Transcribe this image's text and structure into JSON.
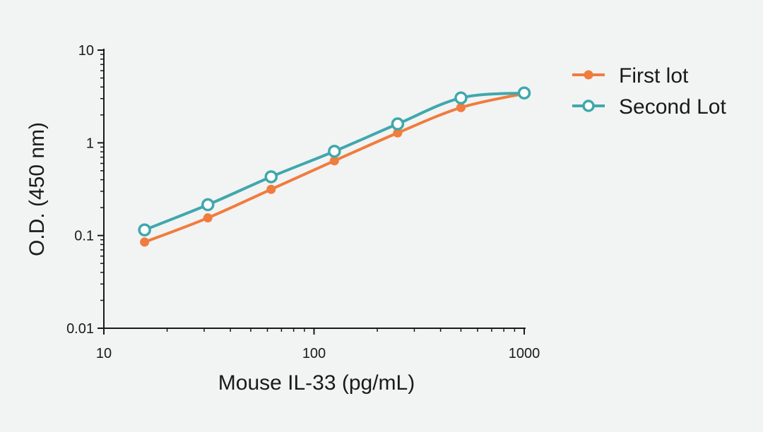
{
  "chart_data": {
    "type": "line",
    "xscale": "log",
    "yscale": "log",
    "xlabel": "Mouse IL-33 (pg/mL)",
    "ylabel": "O.D. (450 nm)",
    "xlim": [
      10,
      1000
    ],
    "ylim": [
      0.01,
      10
    ],
    "xticks": [
      10,
      100,
      1000
    ],
    "xtick_labels": [
      "10",
      "100",
      "1000"
    ],
    "yticks": [
      0.01,
      0.1,
      1,
      10
    ],
    "ytick_labels": [
      "0.01",
      "0.1",
      "1",
      "10"
    ],
    "legend_position": "top-right",
    "grid": false,
    "series": [
      {
        "name": "First lot",
        "color": "#f07c3e",
        "marker": "filled-circle",
        "x": [
          15.625,
          31.25,
          62.5,
          125,
          250,
          500,
          1000
        ],
        "y": [
          0.085,
          0.155,
          0.315,
          0.64,
          1.28,
          2.4,
          3.4
        ]
      },
      {
        "name": "Second Lot",
        "color": "#3fa8ad",
        "marker": "open-circle",
        "x": [
          15.625,
          31.25,
          62.5,
          125,
          250,
          500,
          1000
        ],
        "y": [
          0.115,
          0.215,
          0.43,
          0.81,
          1.6,
          3.05,
          3.45
        ]
      }
    ]
  }
}
